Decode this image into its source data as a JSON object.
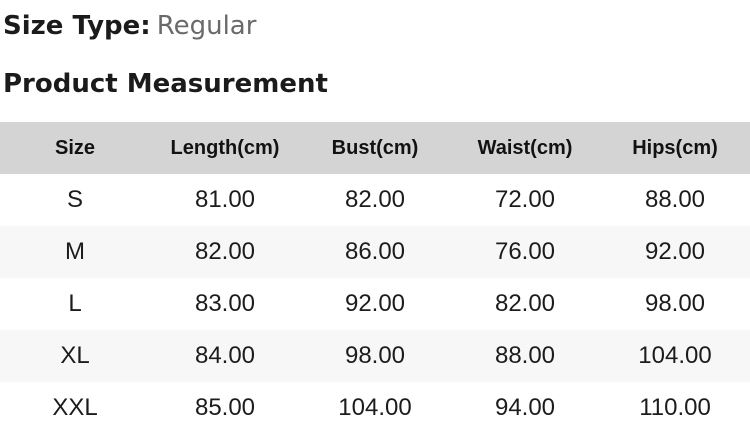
{
  "header": {
    "size_type_label": "Size Type:",
    "size_type_value": "Regular",
    "section_title": "Product Measurement"
  },
  "table": {
    "headers": [
      "Size",
      "Length(cm)",
      "Bust(cm)",
      "Waist(cm)",
      "Hips(cm)"
    ],
    "rows": [
      {
        "size": "S",
        "length": "81.00",
        "bust": "82.00",
        "waist": "72.00",
        "hips": "88.00"
      },
      {
        "size": "M",
        "length": "82.00",
        "bust": "86.00",
        "waist": "76.00",
        "hips": "92.00"
      },
      {
        "size": "L",
        "length": "83.00",
        "bust": "92.00",
        "waist": "82.00",
        "hips": "98.00"
      },
      {
        "size": "XL",
        "length": "84.00",
        "bust": "98.00",
        "waist": "88.00",
        "hips": "104.00"
      },
      {
        "size": "XXL",
        "length": "85.00",
        "bust": "104.00",
        "waist": "94.00",
        "hips": "110.00"
      }
    ]
  },
  "colors": {
    "table_header_bg": "#d4d4d4",
    "row_stripe_bg": "#f7f7f7",
    "muted_text": "#6a6a6a"
  }
}
